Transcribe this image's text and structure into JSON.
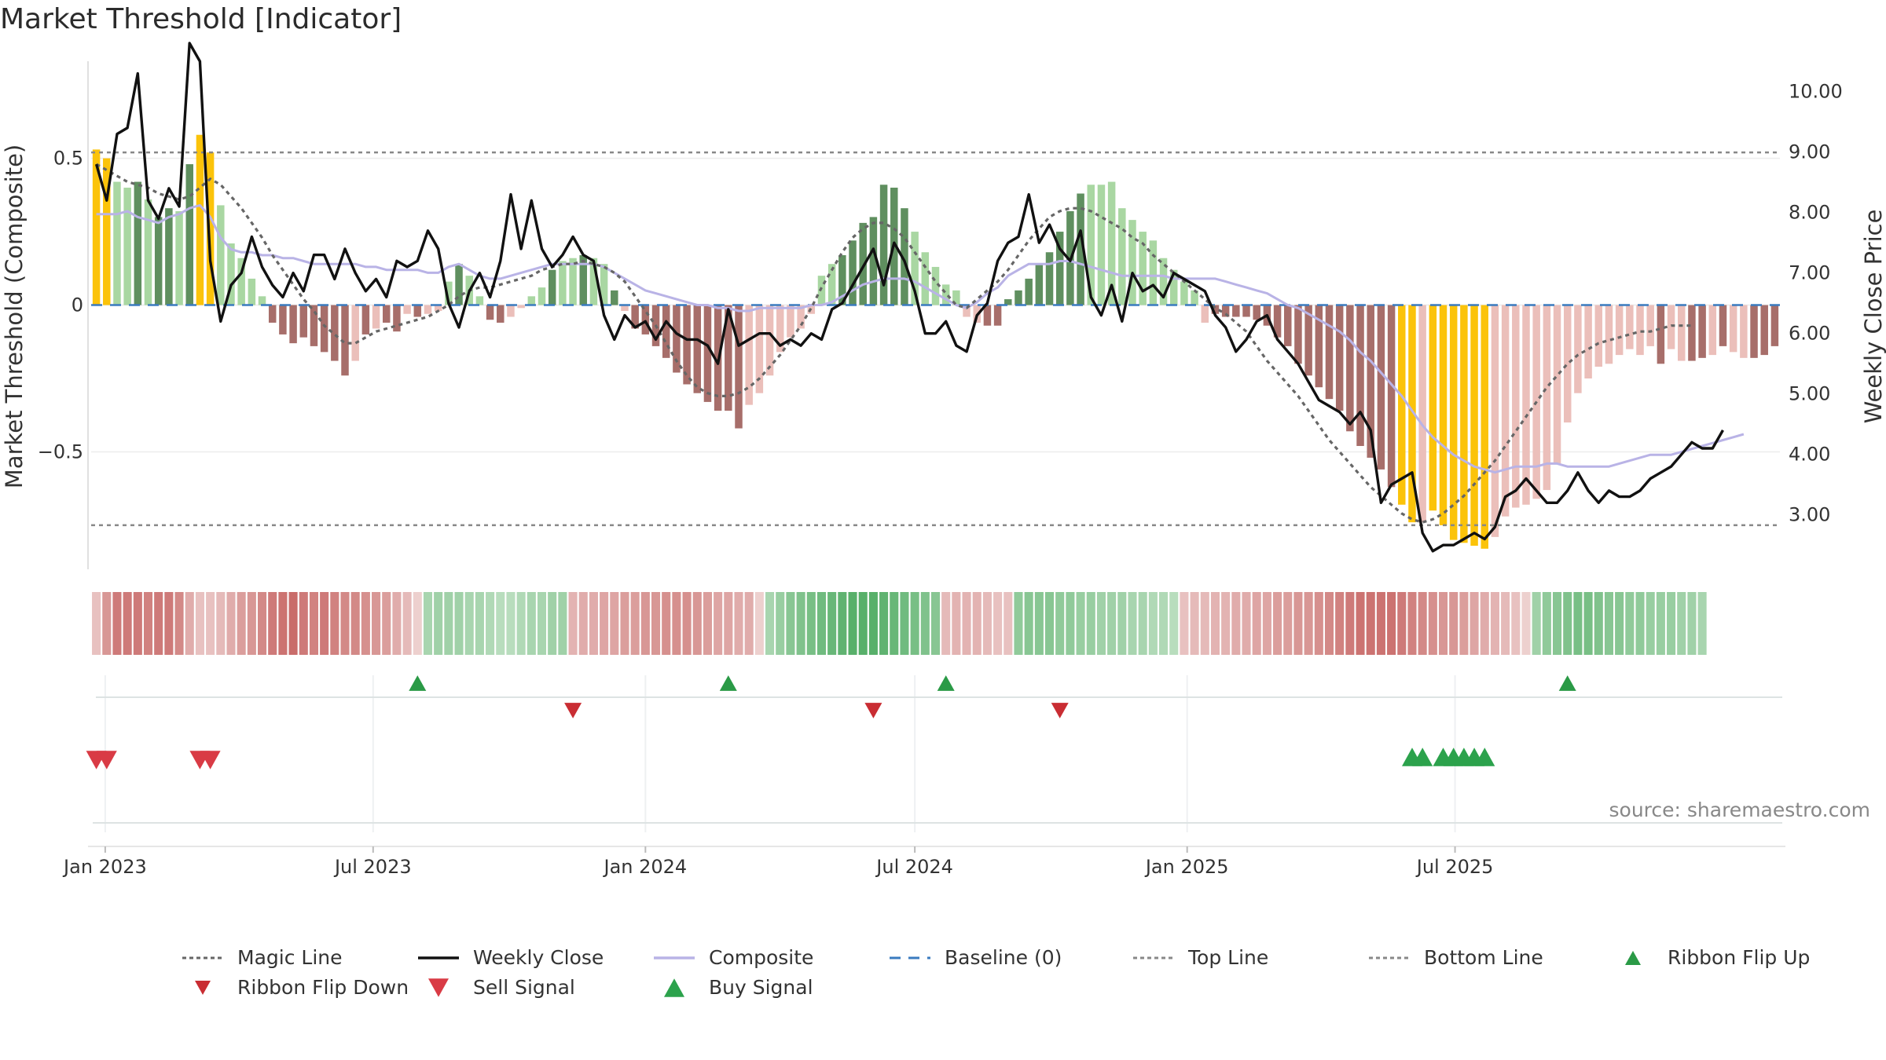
{
  "title": "Market Threshold [Indicator]",
  "source": "source: sharemaestro.com",
  "colors": {
    "strong_up": "#5f8f5f",
    "weak_up": "#a9d7a2",
    "strong_down": "#a76e6a",
    "weak_down": "#ebbfba",
    "extreme": "#fbc30a",
    "close": "#111111",
    "composite": "#b9b3e6",
    "magic": "#666666",
    "baseline": "#3a7bbf",
    "buy": "#2ca24c",
    "sell": "#d93b45",
    "flip_up": "#2a9a46",
    "flip_down": "#c92d33"
  },
  "chart_data": {
    "type": "bar",
    "title": "Market Threshold [Indicator]",
    "xlabel": "",
    "ylabel": "Market Threshold (Composite)",
    "ylabel_right": "Weekly Close Price",
    "ylim": [
      -0.9,
      0.82
    ],
    "ylim_right": [
      2.1,
      10.45
    ],
    "yticks_left": [
      0.5,
      0,
      -0.5
    ],
    "ytick_labels_left": [
      "0.5",
      "0",
      "−0.5"
    ],
    "yticks_right": [
      10,
      9,
      8,
      7,
      6,
      5,
      4,
      3
    ],
    "ytick_labels_right": [
      "10.00",
      "9.00",
      "8.00",
      "7.00",
      "6.00",
      "5.00",
      "4.00",
      "3.00"
    ],
    "x_start": "2022-12-26",
    "x_step_days": 7,
    "x_ticks": [
      "Jan 2023",
      "Jul 2023",
      "Jan 2024",
      "Jul 2024",
      "Jan 2025",
      "Jul 2025"
    ],
    "top_line": 0.52,
    "bottom_line": -0.75,
    "baseline": 0,
    "histogram": [
      0.53,
      0.5,
      0.42,
      0.4,
      0.42,
      0.36,
      0.3,
      0.33,
      0.32,
      0.48,
      0.58,
      0.52,
      0.34,
      0.21,
      0.16,
      0.09,
      0.03,
      -0.06,
      -0.1,
      -0.13,
      -0.11,
      -0.14,
      -0.16,
      -0.19,
      -0.24,
      -0.19,
      -0.1,
      -0.08,
      -0.06,
      -0.09,
      -0.03,
      -0.04,
      -0.03,
      -0.02,
      0.08,
      0.14,
      0.1,
      0.03,
      -0.05,
      -0.06,
      -0.04,
      -0.01,
      0.03,
      0.06,
      0.12,
      0.15,
      0.16,
      0.17,
      0.16,
      0.14,
      0.05,
      -0.02,
      -0.08,
      -0.1,
      -0.14,
      -0.18,
      -0.23,
      -0.27,
      -0.3,
      -0.33,
      -0.36,
      -0.36,
      -0.42,
      -0.34,
      -0.3,
      -0.24,
      -0.16,
      -0.11,
      -0.08,
      -0.03,
      0.1,
      0.14,
      0.17,
      0.22,
      0.28,
      0.3,
      0.41,
      0.4,
      0.33,
      0.25,
      0.18,
      0.13,
      0.07,
      0.05,
      -0.04,
      -0.06,
      -0.07,
      -0.07,
      0.02,
      0.05,
      0.09,
      0.14,
      0.18,
      0.25,
      0.32,
      0.38,
      0.41,
      0.41,
      0.42,
      0.33,
      0.29,
      0.25,
      0.22,
      0.16,
      0.12,
      0.08,
      0.05,
      -0.06,
      -0.03,
      -0.04,
      -0.04,
      -0.04,
      -0.05,
      -0.07,
      -0.11,
      -0.14,
      -0.2,
      -0.24,
      -0.28,
      -0.32,
      -0.36,
      -0.43,
      -0.48,
      -0.52,
      -0.56,
      -0.62,
      -0.68,
      -0.74,
      -0.74,
      -0.7,
      -0.75,
      -0.8,
      -0.81,
      -0.82,
      -0.83,
      -0.79,
      -0.72,
      -0.69,
      -0.68,
      -0.66,
      -0.63,
      -0.54,
      -0.4,
      -0.3,
      -0.25,
      -0.21,
      -0.2,
      -0.17,
      -0.15,
      -0.17,
      -0.14,
      -0.2,
      -0.15,
      -0.19,
      -0.19,
      -0.18,
      -0.17,
      -0.14,
      -0.16,
      -0.18,
      -0.18,
      -0.17,
      -0.14
    ],
    "histogram_class": [
      "E",
      "E",
      "W",
      "W",
      "S",
      "W",
      "S",
      "S",
      "W",
      "S",
      "E",
      "E",
      "W",
      "W",
      "W",
      "W",
      "W",
      "S",
      "S",
      "S",
      "S",
      "S",
      "S",
      "S",
      "S",
      "W",
      "S",
      "W",
      "S",
      "S",
      "W",
      "S",
      "W",
      "W",
      "W",
      "S",
      "W",
      "W",
      "S",
      "S",
      "W",
      "W",
      "W",
      "W",
      "S",
      "W",
      "W",
      "S",
      "W",
      "W",
      "S",
      "W",
      "S",
      "S",
      "S",
      "S",
      "S",
      "S",
      "S",
      "S",
      "S",
      "S",
      "S",
      "W",
      "W",
      "W",
      "W",
      "W",
      "W",
      "W",
      "W",
      "W",
      "S",
      "S",
      "S",
      "S",
      "S",
      "S",
      "S",
      "W",
      "W",
      "W",
      "W",
      "W",
      "W",
      "W",
      "S",
      "S",
      "S",
      "S",
      "S",
      "S",
      "S",
      "S",
      "S",
      "S",
      "W",
      "W",
      "W",
      "W",
      "W",
      "W",
      "W",
      "W",
      "W",
      "W",
      "W",
      "W",
      "S",
      "S",
      "S",
      "S",
      "S",
      "S",
      "S",
      "S",
      "S",
      "S",
      "S",
      "S",
      "S",
      "S",
      "S",
      "S",
      "S",
      "S",
      "E",
      "E",
      "W",
      "E",
      "E",
      "E",
      "E",
      "E",
      "E",
      "W",
      "W",
      "W",
      "W",
      "W",
      "W",
      "W",
      "W",
      "W",
      "W",
      "W",
      "W",
      "W",
      "W",
      "W",
      "W",
      "S",
      "W",
      "W",
      "S",
      "S",
      "W",
      "S",
      "W",
      "W",
      "S",
      "S",
      "S",
      "S",
      "W"
    ],
    "series": [
      {
        "name": "Weekly Close",
        "axis": "right",
        "values": [
          8.8,
          8.2,
          9.3,
          9.4,
          10.3,
          8.2,
          7.9,
          8.4,
          8.1,
          10.8,
          10.5,
          7.2,
          6.2,
          6.8,
          7.0,
          7.6,
          7.1,
          6.8,
          6.6,
          7.0,
          6.7,
          7.3,
          7.3,
          6.9,
          7.4,
          7.0,
          6.7,
          6.9,
          6.6,
          7.2,
          7.1,
          7.2,
          7.7,
          7.4,
          6.5,
          6.1,
          6.7,
          7.0,
          6.6,
          7.2,
          8.3,
          7.4,
          8.2,
          7.4,
          7.1,
          7.3,
          7.6,
          7.3,
          7.2,
          6.3,
          5.9,
          6.3,
          6.1,
          6.2,
          5.9,
          6.2,
          6.0,
          5.9,
          5.9,
          5.8,
          5.5,
          6.4,
          5.8,
          5.9,
          6.0,
          6.0,
          5.8,
          5.9,
          5.8,
          6.0,
          5.9,
          6.4,
          6.5,
          6.8,
          7.1,
          7.4,
          6.8,
          7.5,
          7.2,
          6.7,
          6.0,
          6.0,
          6.2,
          5.8,
          5.7,
          6.3,
          6.5,
          7.2,
          7.5,
          7.6,
          8.3,
          7.5,
          7.8,
          7.4,
          7.2,
          7.7,
          6.6,
          6.3,
          6.8,
          6.2,
          7.0,
          6.7,
          6.8,
          6.6,
          7.0,
          6.9,
          6.8,
          6.7,
          6.3,
          6.1,
          5.7,
          5.9,
          6.2,
          6.3,
          5.9,
          5.7,
          5.5,
          5.2,
          4.9,
          4.8,
          4.7,
          4.5,
          4.7,
          4.4,
          3.2,
          3.5,
          3.6,
          3.7,
          2.7,
          2.4,
          2.5,
          2.5,
          2.6,
          2.7,
          2.6,
          2.8,
          3.3,
          3.4,
          3.6,
          3.4,
          3.2,
          3.2,
          3.4,
          3.7,
          3.4,
          3.2,
          3.4,
          3.3,
          3.3,
          3.4,
          3.6,
          3.7,
          3.8,
          4.0,
          4.2,
          4.1,
          4.1,
          4.4
        ]
      },
      {
        "name": "Composite",
        "axis": "left",
        "values": [
          0.31,
          0.31,
          0.31,
          0.32,
          0.3,
          0.29,
          0.28,
          0.3,
          0.31,
          0.33,
          0.34,
          0.3,
          0.23,
          0.19,
          0.18,
          0.18,
          0.17,
          0.17,
          0.16,
          0.16,
          0.15,
          0.14,
          0.14,
          0.14,
          0.14,
          0.14,
          0.13,
          0.13,
          0.12,
          0.12,
          0.12,
          0.12,
          0.11,
          0.11,
          0.13,
          0.14,
          0.12,
          0.1,
          0.09,
          0.09,
          0.1,
          0.11,
          0.12,
          0.13,
          0.14,
          0.14,
          0.14,
          0.14,
          0.14,
          0.13,
          0.11,
          0.09,
          0.07,
          0.05,
          0.04,
          0.03,
          0.02,
          0.01,
          0.0,
          0.0,
          -0.01,
          -0.01,
          -0.02,
          -0.02,
          -0.01,
          -0.01,
          -0.01,
          -0.01,
          -0.01,
          0.0,
          0.0,
          0.01,
          0.03,
          0.05,
          0.07,
          0.08,
          0.09,
          0.09,
          0.09,
          0.08,
          0.06,
          0.04,
          0.02,
          0.0,
          -0.01,
          0.01,
          0.04,
          0.06,
          0.1,
          0.12,
          0.14,
          0.14,
          0.14,
          0.15,
          0.15,
          0.14,
          0.13,
          0.12,
          0.11,
          0.1,
          0.1,
          0.1,
          0.1,
          0.1,
          0.09,
          0.09,
          0.09,
          0.09,
          0.09,
          0.08,
          0.07,
          0.06,
          0.05,
          0.04,
          0.02,
          0.0,
          -0.01,
          -0.03,
          -0.05,
          -0.07,
          -0.09,
          -0.12,
          -0.16,
          -0.19,
          -0.23,
          -0.27,
          -0.31,
          -0.36,
          -0.41,
          -0.45,
          -0.48,
          -0.51,
          -0.53,
          -0.55,
          -0.56,
          -0.57,
          -0.56,
          -0.55,
          -0.55,
          -0.55,
          -0.54,
          -0.54,
          -0.55,
          -0.55,
          -0.55,
          -0.55,
          -0.55,
          -0.54,
          -0.53,
          -0.52,
          -0.51,
          -0.51,
          -0.51,
          -0.5,
          -0.49,
          -0.48,
          -0.47,
          -0.46,
          -0.45,
          -0.44
        ]
      },
      {
        "name": "Magic Line",
        "axis": "left",
        "values": [
          0.48,
          0.46,
          0.44,
          0.42,
          0.41,
          0.4,
          0.38,
          0.37,
          0.36,
          0.37,
          0.4,
          0.43,
          0.41,
          0.37,
          0.33,
          0.28,
          0.23,
          0.17,
          0.12,
          0.07,
          0.02,
          -0.02,
          -0.07,
          -0.1,
          -0.13,
          -0.13,
          -0.11,
          -0.09,
          -0.08,
          -0.07,
          -0.06,
          -0.05,
          -0.04,
          -0.02,
          0.0,
          0.03,
          0.05,
          0.06,
          0.06,
          0.07,
          0.08,
          0.09,
          0.1,
          0.12,
          0.13,
          0.14,
          0.14,
          0.15,
          0.14,
          0.13,
          0.11,
          0.08,
          0.03,
          -0.02,
          -0.07,
          -0.13,
          -0.19,
          -0.24,
          -0.28,
          -0.3,
          -0.31,
          -0.31,
          -0.3,
          -0.28,
          -0.25,
          -0.21,
          -0.17,
          -0.12,
          -0.07,
          -0.01,
          0.06,
          0.12,
          0.18,
          0.23,
          0.26,
          0.28,
          0.28,
          0.26,
          0.23,
          0.18,
          0.13,
          0.08,
          0.04,
          0.0,
          -0.01,
          0.02,
          0.05,
          0.08,
          0.12,
          0.17,
          0.22,
          0.26,
          0.3,
          0.32,
          0.33,
          0.33,
          0.32,
          0.3,
          0.28,
          0.26,
          0.23,
          0.21,
          0.17,
          0.14,
          0.11,
          0.08,
          0.05,
          0.02,
          -0.01,
          -0.03,
          -0.06,
          -0.09,
          -0.14,
          -0.19,
          -0.23,
          -0.27,
          -0.31,
          -0.36,
          -0.41,
          -0.46,
          -0.5,
          -0.54,
          -0.58,
          -0.62,
          -0.65,
          -0.68,
          -0.71,
          -0.73,
          -0.74,
          -0.73,
          -0.71,
          -0.68,
          -0.65,
          -0.61,
          -0.57,
          -0.53,
          -0.48,
          -0.43,
          -0.38,
          -0.33,
          -0.28,
          -0.24,
          -0.2,
          -0.17,
          -0.15,
          -0.13,
          -0.12,
          -0.11,
          -0.1,
          -0.09,
          -0.09,
          -0.08,
          -0.07,
          -0.07,
          -0.07
        ]
      }
    ],
    "ribbon": [
      -0.3,
      -0.6,
      -0.8,
      -0.8,
      -0.8,
      -0.75,
      -0.8,
      -0.8,
      -0.7,
      -0.45,
      -0.3,
      -0.3,
      -0.35,
      -0.45,
      -0.55,
      -0.6,
      -0.7,
      -0.8,
      -0.85,
      -0.9,
      -0.8,
      -0.75,
      -0.8,
      -0.75,
      -0.7,
      -0.7,
      -0.65,
      -0.6,
      -0.55,
      -0.45,
      -0.35,
      -0.2,
      0.4,
      0.45,
      0.45,
      0.45,
      0.4,
      0.4,
      0.35,
      0.3,
      0.3,
      0.35,
      0.4,
      0.4,
      0.45,
      0.45,
      -0.4,
      -0.45,
      -0.45,
      -0.5,
      -0.5,
      -0.55,
      -0.55,
      -0.6,
      -0.6,
      -0.65,
      -0.65,
      -0.65,
      -0.6,
      -0.55,
      -0.5,
      -0.5,
      -0.45,
      -0.45,
      -0.2,
      0.4,
      0.5,
      0.6,
      0.65,
      0.7,
      0.75,
      0.8,
      0.85,
      0.9,
      0.9,
      0.9,
      0.85,
      0.8,
      0.75,
      0.7,
      0.65,
      0.6,
      -0.35,
      -0.4,
      -0.4,
      -0.4,
      -0.35,
      -0.3,
      -0.3,
      0.55,
      0.6,
      0.6,
      0.6,
      0.55,
      0.55,
      0.5,
      0.5,
      0.45,
      0.45,
      0.45,
      0.4,
      0.4,
      0.35,
      0.35,
      0.3,
      -0.3,
      -0.35,
      -0.35,
      -0.4,
      -0.4,
      -0.45,
      -0.45,
      -0.5,
      -0.5,
      -0.55,
      -0.55,
      -0.6,
      -0.6,
      -0.65,
      -0.7,
      -0.75,
      -0.8,
      -0.85,
      -0.85,
      -0.85,
      -0.85,
      -0.8,
      -0.75,
      -0.7,
      -0.65,
      -0.6,
      -0.6,
      -0.55,
      -0.5,
      -0.45,
      -0.4,
      -0.35,
      -0.3,
      -0.2,
      0.45,
      0.55,
      0.6,
      0.65,
      0.7,
      0.7,
      0.65,
      0.6,
      0.6,
      0.55,
      0.55,
      0.5,
      0.5,
      0.5,
      0.45,
      0.45,
      0.4
    ],
    "signals": {
      "ribbon_flip_up": [
        31,
        61,
        82,
        142
      ],
      "ribbon_flip_down": [
        46,
        75,
        93
      ],
      "buy_signal": [
        127,
        128,
        130,
        131,
        132,
        133,
        134
      ],
      "sell_signal": [
        0,
        1,
        10,
        11
      ]
    }
  },
  "legend": [
    {
      "label": "Magic Line",
      "style": "dot-line",
      "color": "#666666"
    },
    {
      "label": "Weekly Close",
      "style": "solid-line",
      "color": "#111111"
    },
    {
      "label": "Composite",
      "style": "solid-line",
      "color": "#b9b3e6"
    },
    {
      "label": "Baseline (0)",
      "style": "dash-line",
      "color": "#3a7bbf"
    },
    {
      "label": "Top Line",
      "style": "dot-line",
      "color": "#888888"
    },
    {
      "label": "Bottom Line",
      "style": "dot-line",
      "color": "#888888"
    },
    {
      "label": "Ribbon Flip Up",
      "style": "triangle-up",
      "color": "#2a9a46"
    },
    {
      "label": "Ribbon Flip Down",
      "style": "triangle-down",
      "color": "#c92d33"
    },
    {
      "label": "Sell Signal",
      "style": "triangle-down-large",
      "color": "#d93b45"
    },
    {
      "label": "Buy Signal",
      "style": "triangle-up-large",
      "color": "#2ca24c"
    }
  ]
}
